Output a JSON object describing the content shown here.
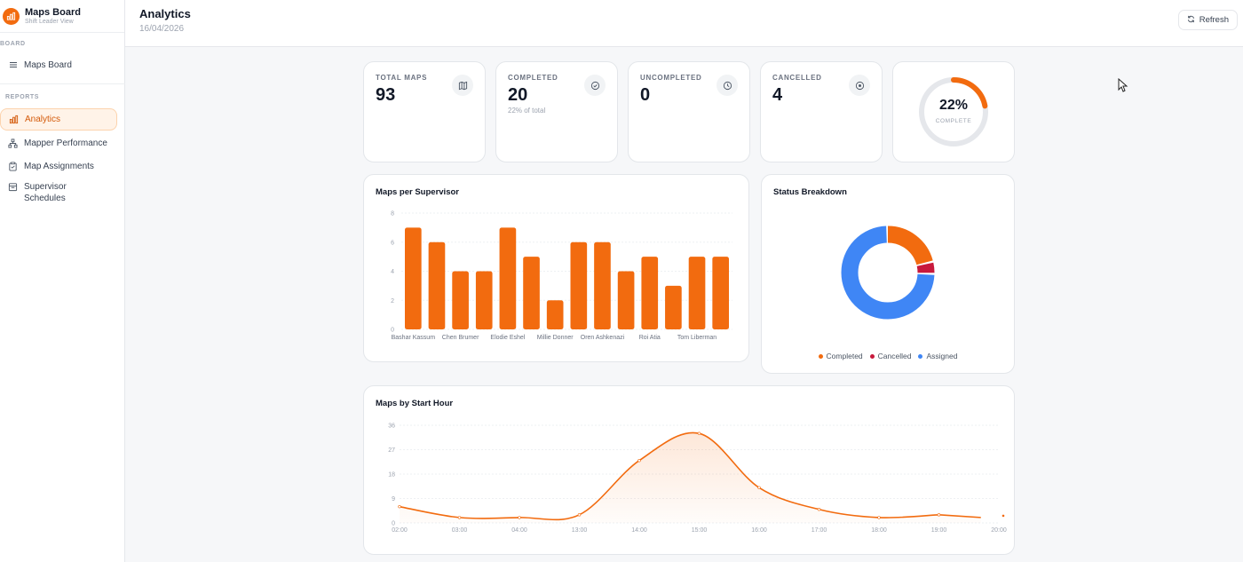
{
  "app": {
    "title": "Maps Board",
    "subtitle": "Shift Leader View"
  },
  "sidebar": {
    "board_label": "BOARD",
    "reports_label": "REPORTS",
    "items": [
      {
        "label": "Maps Board",
        "icon": "menu-icon"
      },
      {
        "label": "Analytics",
        "icon": "bar-chart-icon",
        "active": true
      },
      {
        "label": "Mapper Performance",
        "icon": "hierarchy-icon"
      },
      {
        "label": "Map Assignments",
        "icon": "clipboard-icon"
      },
      {
        "label": "Supervisor Schedules",
        "icon": "calendar-icon"
      }
    ]
  },
  "header": {
    "title": "Analytics",
    "date": "16/04/2026",
    "refresh_label": "Refresh"
  },
  "stats": [
    {
      "label": "TOTAL MAPS",
      "value": "93",
      "icon": "map-icon"
    },
    {
      "label": "COMPLETED",
      "value": "20",
      "sub": "22% of total",
      "icon": "check-circle-icon"
    },
    {
      "label": "UNCOMPLETED",
      "value": "0",
      "icon": "clock-icon"
    },
    {
      "label": "CANCELLED",
      "value": "4",
      "icon": "x-circle-icon"
    }
  ],
  "progress": {
    "percent_label": "22%",
    "caption": "COMPLETE",
    "fraction": 0.22
  },
  "colors": {
    "accent": "#f26b0f",
    "cancelled": "#c8193c",
    "assigned": "#3f86f5",
    "track": "#e5e7eb"
  },
  "chart_data": [
    {
      "title": "Maps per Supervisor",
      "type": "bar",
      "categories": [
        "Bashar Kassum",
        "",
        "Chen Brumer",
        "",
        "Elodie Eshel",
        "",
        "Millie Donner",
        "",
        "Oren Ashkenazi",
        "",
        "Roi Atia",
        "",
        "Tom Liberman",
        ""
      ],
      "values": [
        7,
        6,
        4,
        4,
        7,
        5,
        2,
        6,
        6,
        4,
        5,
        3,
        5,
        5
      ],
      "ylim": [
        0,
        8
      ],
      "yticks": [
        0,
        2,
        4,
        6,
        8
      ]
    },
    {
      "title": "Status Breakdown",
      "type": "pie",
      "labels": [
        "Completed",
        "Cancelled",
        "Assigned"
      ],
      "values": [
        20,
        4,
        69
      ]
    },
    {
      "title": "Maps by Start Hour",
      "type": "area",
      "x": [
        "02:00",
        "03:00",
        "04:00",
        "13:00",
        "14:00",
        "15:00",
        "16:00",
        "17:00",
        "18:00",
        "19:00",
        "20:00"
      ],
      "values": [
        6,
        2,
        2,
        3,
        23,
        33,
        13,
        5,
        2,
        3,
        2
      ],
      "ylim": [
        0,
        36
      ],
      "yticks": [
        0,
        9,
        18,
        27,
        36
      ]
    }
  ]
}
